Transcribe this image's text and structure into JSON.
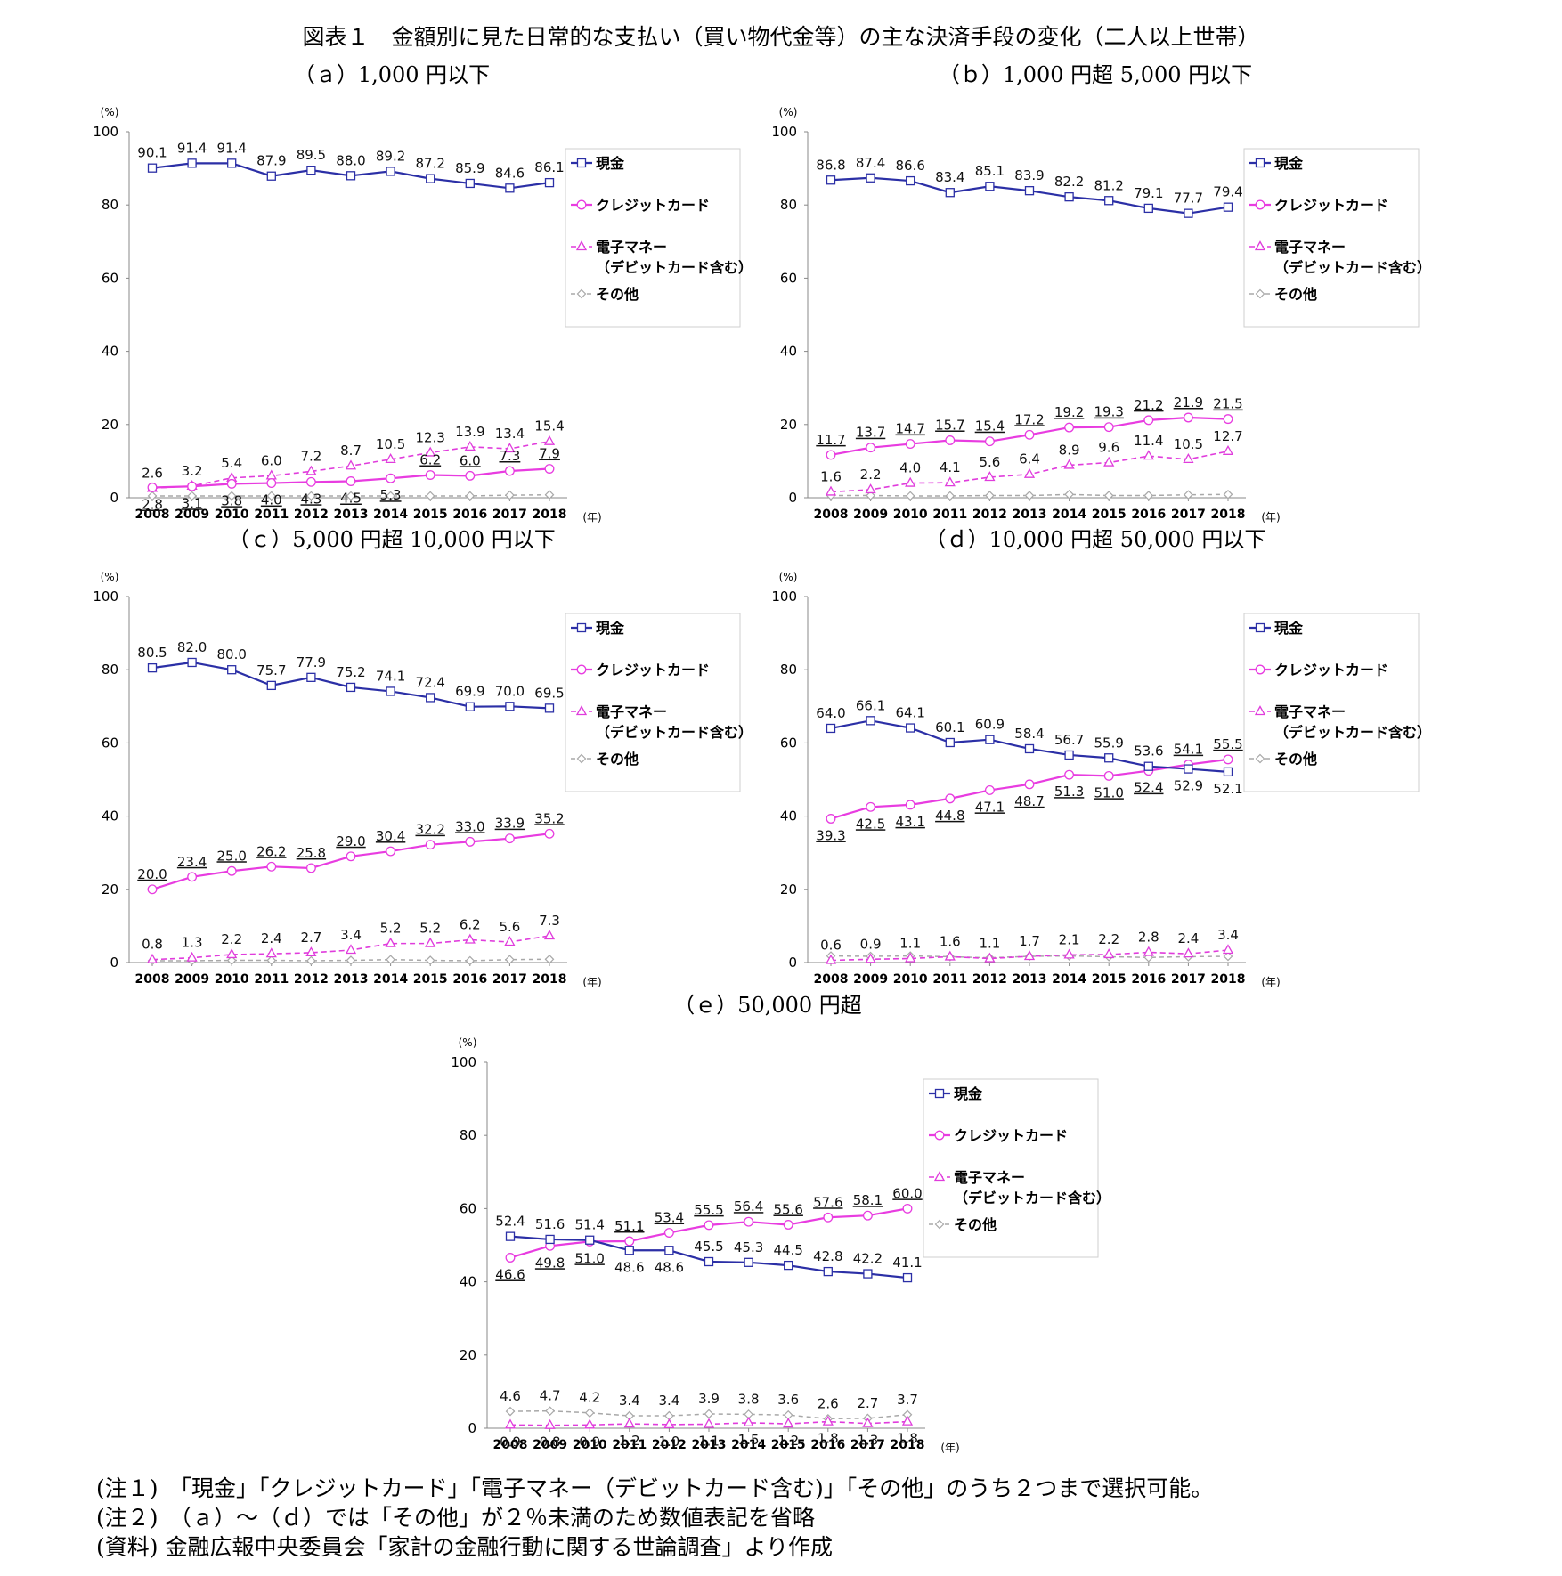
{
  "figure_title": "図表１　金額別に見た日常的な支払い（買い物代金等）の主な決済手段の変化（二人以上世帯）",
  "notes": [
    "(注１)　「現金」「クレジットカード」「電子マネー（デビットカード含む)」「その他」のうち２つまで選択可能。",
    "(注２)　（ａ）～（ｄ）では「その他」が２％未満のため数値表記を省略",
    "(資料)  金融広報中央委員会「家計の金融行動に関する世論調査」より作成"
  ],
  "colors": {
    "cash": "#2b2fa6",
    "credit": "#e83ce0",
    "emoney": "#e03cdc",
    "other": "#a8a8a8"
  },
  "chart_data": [
    {
      "type": "line",
      "title": "（ａ）1,000 円以下",
      "y_unit": "(%)",
      "x_unit": "(年)",
      "x": [
        "2008",
        "2009",
        "2010",
        "2011",
        "2012",
        "2013",
        "2014",
        "2015",
        "2016",
        "2017",
        "2018"
      ],
      "ylim": [
        0,
        100
      ],
      "yticks": [
        0,
        20,
        40,
        60,
        80,
        100
      ],
      "legend_position": "right",
      "series": [
        {
          "name": "現金",
          "key": "cash",
          "values": [
            90.1,
            91.4,
            91.4,
            87.9,
            89.5,
            88.0,
            89.2,
            87.2,
            85.9,
            84.6,
            86.1
          ],
          "labels": [
            "90.1",
            "91.4",
            "91.4",
            "87.9",
            "89.5",
            "88.0",
            "89.2",
            "87.2",
            "85.9",
            "84.6",
            "86.1"
          ]
        },
        {
          "name": "クレジットカード",
          "key": "credit",
          "values": [
            2.8,
            3.1,
            3.8,
            4.0,
            4.3,
            4.5,
            5.3,
            6.2,
            6.0,
            7.3,
            7.9
          ],
          "labels": [
            "2.8",
            "3.1",
            "3.8",
            "4.0",
            "4.3",
            "4.5",
            "5.3",
            "6.2",
            "6.0",
            "7.3",
            "7.9"
          ]
        },
        {
          "name": "電子マネー",
          "name2": "（デビットカード含む）",
          "key": "emoney",
          "values": [
            2.6,
            3.2,
            5.4,
            6.0,
            7.2,
            8.7,
            10.5,
            12.3,
            13.9,
            13.4,
            15.4
          ],
          "labels": [
            "2.6",
            "3.2",
            "5.4",
            "6.0",
            "7.2",
            "8.7",
            "10.5",
            "12.3",
            "13.9",
            "13.4",
            "15.4"
          ]
        },
        {
          "name": "その他",
          "key": "other",
          "values": [
            0.5,
            0.5,
            0.5,
            0.5,
            0.5,
            0.5,
            0.5,
            0.5,
            0.5,
            0.7,
            0.8
          ],
          "labels": []
        }
      ]
    },
    {
      "type": "line",
      "title": "（ｂ）1,000 円超 5,000 円以下",
      "y_unit": "(%)",
      "x_unit": "(年)",
      "x": [
        "2008",
        "2009",
        "2010",
        "2011",
        "2012",
        "2013",
        "2014",
        "2015",
        "2016",
        "2017",
        "2018"
      ],
      "ylim": [
        0,
        100
      ],
      "yticks": [
        0,
        20,
        40,
        60,
        80,
        100
      ],
      "legend_position": "right",
      "series": [
        {
          "name": "現金",
          "key": "cash",
          "values": [
            86.8,
            87.4,
            86.6,
            83.4,
            85.1,
            83.9,
            82.2,
            81.2,
            79.1,
            77.7,
            79.4
          ],
          "labels": [
            "86.8",
            "87.4",
            "86.6",
            "83.4",
            "85.1",
            "83.9",
            "82.2",
            "81.2",
            "79.1",
            "77.7",
            "79.4"
          ]
        },
        {
          "name": "クレジットカード",
          "key": "credit",
          "values": [
            11.7,
            13.7,
            14.7,
            15.7,
            15.4,
            17.2,
            19.2,
            19.3,
            21.2,
            21.9,
            21.5
          ],
          "labels": [
            "11.7",
            "13.7",
            "14.7",
            "15.7",
            "15.4",
            "17.2",
            "19.2",
            "19.3",
            "21.2",
            "21.9",
            "21.5"
          ]
        },
        {
          "name": "電子マネー",
          "name2": "（デビットカード含む）",
          "key": "emoney",
          "values": [
            1.6,
            2.2,
            4.0,
            4.1,
            5.6,
            6.4,
            8.9,
            9.6,
            11.4,
            10.5,
            12.7
          ],
          "labels": [
            "1.6",
            "2.2",
            "4.0",
            "4.1",
            "5.6",
            "6.4",
            "8.9",
            "9.6",
            "11.4",
            "10.5",
            "12.7"
          ]
        },
        {
          "name": "その他",
          "key": "other",
          "values": [
            0.6,
            0.6,
            0.5,
            0.5,
            0.6,
            0.6,
            0.9,
            0.6,
            0.6,
            0.8,
            0.9
          ],
          "labels": []
        }
      ]
    },
    {
      "type": "line",
      "title": "（ｃ）5,000 円超 10,000 円以下",
      "y_unit": "(%)",
      "x_unit": "(年)",
      "x": [
        "2008",
        "2009",
        "2010",
        "2011",
        "2012",
        "2013",
        "2014",
        "2015",
        "2016",
        "2017",
        "2018"
      ],
      "ylim": [
        0,
        100
      ],
      "yticks": [
        0,
        20,
        40,
        60,
        80,
        100
      ],
      "legend_position": "right",
      "series": [
        {
          "name": "現金",
          "key": "cash",
          "values": [
            80.5,
            82.0,
            80.0,
            75.7,
            77.9,
            75.2,
            74.1,
            72.4,
            69.9,
            70.0,
            69.5
          ],
          "labels": [
            "80.5",
            "82.0",
            "80.0",
            "75.7",
            "77.9",
            "75.2",
            "74.1",
            "72.4",
            "69.9",
            "70.0",
            "69.5"
          ]
        },
        {
          "name": "クレジットカード",
          "key": "credit",
          "values": [
            20.0,
            23.4,
            25.0,
            26.2,
            25.8,
            29.0,
            30.4,
            32.2,
            33.0,
            33.9,
            35.2
          ],
          "labels": [
            "20.0",
            "23.4",
            "25.0",
            "26.2",
            "25.8",
            "29.0",
            "30.4",
            "32.2",
            "33.0",
            "33.9",
            "35.2"
          ]
        },
        {
          "name": "電子マネー",
          "name2": "（デビットカード含む）",
          "key": "emoney",
          "values": [
            0.8,
            1.3,
            2.2,
            2.4,
            2.7,
            3.4,
            5.2,
            5.2,
            6.2,
            5.6,
            7.3
          ],
          "labels": [
            "0.8",
            "1.3",
            "2.2",
            "2.4",
            "2.7",
            "3.4",
            "5.2",
            "5.2",
            "6.2",
            "5.6",
            "7.3"
          ]
        },
        {
          "name": "その他",
          "key": "other",
          "values": [
            0.5,
            0.5,
            0.6,
            0.6,
            0.5,
            0.6,
            0.8,
            0.6,
            0.5,
            0.8,
            0.9
          ],
          "labels": []
        }
      ]
    },
    {
      "type": "line",
      "title": "（ｄ）10,000 円超 50,000 円以下",
      "y_unit": "(%)",
      "x_unit": "(年)",
      "x": [
        "2008",
        "2009",
        "2010",
        "2011",
        "2012",
        "2013",
        "2014",
        "2015",
        "2016",
        "2017",
        "2018"
      ],
      "ylim": [
        0,
        100
      ],
      "yticks": [
        0,
        20,
        40,
        60,
        80,
        100
      ],
      "legend_position": "right",
      "series": [
        {
          "name": "現金",
          "key": "cash",
          "values": [
            64.0,
            66.1,
            64.1,
            60.1,
            60.9,
            58.4,
            56.7,
            55.9,
            53.6,
            52.9,
            52.1
          ],
          "labels": [
            "64.0",
            "66.1",
            "64.1",
            "60.1",
            "60.9",
            "58.4",
            "56.7",
            "55.9",
            "53.6",
            "52.9",
            "52.1"
          ]
        },
        {
          "name": "クレジットカード",
          "key": "credit",
          "values": [
            39.3,
            42.5,
            43.1,
            44.8,
            47.1,
            48.7,
            51.3,
            51.0,
            52.4,
            54.1,
            55.5
          ],
          "labels": [
            "39.3",
            "42.5",
            "43.1",
            "44.8",
            "47.1",
            "48.7",
            "51.3",
            "51.0",
            "52.4",
            "54.1",
            "55.5"
          ]
        },
        {
          "name": "電子マネー",
          "name2": "（デビットカード含む）",
          "key": "emoney",
          "values": [
            0.6,
            0.9,
            1.1,
            1.6,
            1.1,
            1.7,
            2.1,
            2.2,
            2.8,
            2.4,
            3.4
          ],
          "labels": [
            "0.6",
            "0.9",
            "1.1",
            "1.6",
            "1.1",
            "1.7",
            "2.1",
            "2.2",
            "2.8",
            "2.4",
            "3.4"
          ]
        },
        {
          "name": "その他",
          "key": "other",
          "values": [
            1.8,
            1.7,
            1.8,
            1.6,
            1.3,
            1.7,
            1.8,
            1.6,
            1.4,
            1.6,
            1.7
          ],
          "labels": []
        }
      ]
    },
    {
      "type": "line",
      "title": "（ｅ）50,000 円超",
      "y_unit": "(%)",
      "x_unit": "(年)",
      "x": [
        "2008",
        "2009",
        "2010",
        "2011",
        "2012",
        "2013",
        "2014",
        "2015",
        "2016",
        "2017",
        "2018"
      ],
      "ylim": [
        0,
        100
      ],
      "yticks": [
        0,
        20,
        40,
        60,
        80,
        100
      ],
      "legend_position": "right",
      "series": [
        {
          "name": "現金",
          "key": "cash",
          "values": [
            52.4,
            51.6,
            51.4,
            48.6,
            48.6,
            45.5,
            45.3,
            44.5,
            42.8,
            42.2,
            41.1
          ],
          "labels": [
            "52.4",
            "51.6",
            "51.4",
            "48.6",
            "48.6",
            "45.5",
            "45.3",
            "44.5",
            "42.8",
            "42.2",
            "41.1"
          ]
        },
        {
          "name": "クレジットカード",
          "key": "credit",
          "values": [
            46.6,
            49.8,
            51.0,
            51.1,
            53.4,
            55.5,
            56.4,
            55.6,
            57.6,
            58.1,
            60.0
          ],
          "labels": [
            "46.6",
            "49.8",
            "51.0",
            "51.1",
            "53.4",
            "55.5",
            "56.4",
            "55.6",
            "57.6",
            "58.1",
            "60.0"
          ]
        },
        {
          "name": "電子マネー",
          "name2": "（デビットカード含む）",
          "key": "emoney",
          "values": [
            0.9,
            0.8,
            0.9,
            1.2,
            1.0,
            1.1,
            1.5,
            1.2,
            1.8,
            1.3,
            1.8
          ],
          "labels": [
            "0.9",
            "0.8",
            "0.9",
            "1.2",
            "1.0",
            "1.1",
            "1.5",
            "1.2",
            "1.8",
            "1.3",
            "1.8"
          ]
        },
        {
          "name": "その他",
          "key": "other",
          "values": [
            4.6,
            4.7,
            4.2,
            3.4,
            3.4,
            3.9,
            3.8,
            3.6,
            2.6,
            2.7,
            3.7
          ],
          "labels": [
            "4.6",
            "4.7",
            "4.2",
            "3.4",
            "3.4",
            "3.9",
            "3.8",
            "3.6",
            "2.6",
            "2.7",
            "3.7"
          ]
        }
      ]
    }
  ]
}
